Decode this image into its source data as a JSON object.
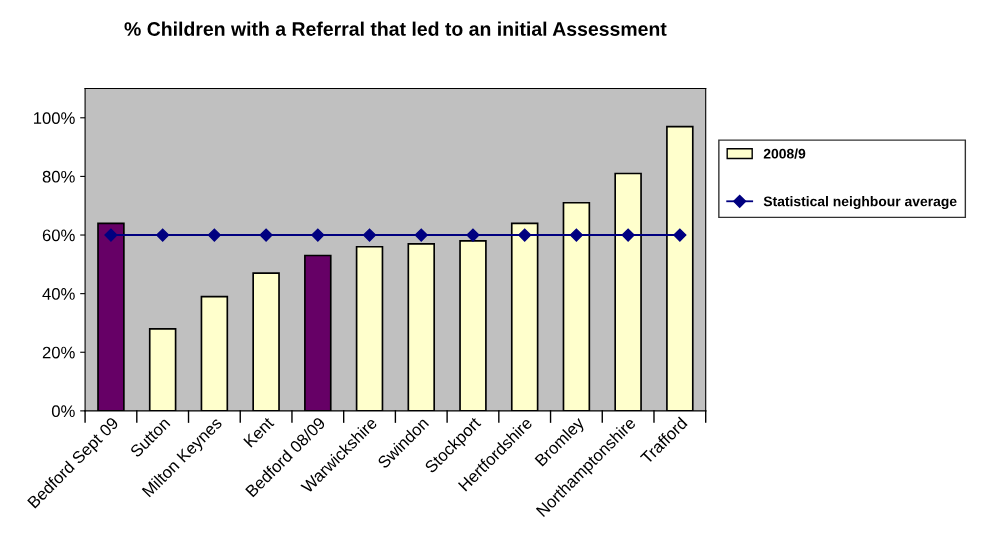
{
  "chart_data": {
    "type": "bar",
    "title": "% Children with a Referral that led to an initial Assessment",
    "categories": [
      "Bedford Sept 09",
      "Sutton",
      "Milton Keynes",
      "Kent",
      "Bedford 08/09",
      "Warwickshire",
      "Swindon",
      "Stockport",
      "Hertfordshire",
      "Bromley",
      "Northamptonshire",
      "Trafford"
    ],
    "series": [
      {
        "name": "2008/9",
        "color": "#ffffcc",
        "colors": [
          "#660066",
          "#ffffcc",
          "#ffffcc",
          "#ffffcc",
          "#660066",
          "#ffffcc",
          "#ffffcc",
          "#ffffcc",
          "#ffffcc",
          "#ffffcc",
          "#ffffcc",
          "#ffffcc"
        ],
        "values": [
          64,
          28,
          39,
          47,
          53,
          56,
          57,
          58,
          64,
          71,
          81,
          97
        ]
      },
      {
        "name": "Statistical neighbour average",
        "type": "line",
        "color": "#000080",
        "marker": "diamond",
        "line_style": "solid",
        "values": [
          60,
          60,
          60,
          60,
          60,
          60,
          60,
          60,
          60,
          60,
          60,
          60
        ]
      }
    ],
    "ylim": [
      0,
      110
    ],
    "yticks": [
      {
        "value": 0,
        "label": "0%"
      },
      {
        "value": 20,
        "label": "20%"
      },
      {
        "value": 40,
        "label": "40%"
      },
      {
        "value": 60,
        "label": "60%"
      },
      {
        "value": 80,
        "label": "80%"
      },
      {
        "value": 100,
        "label": "100%"
      }
    ],
    "grid": false,
    "legend": "right"
  }
}
